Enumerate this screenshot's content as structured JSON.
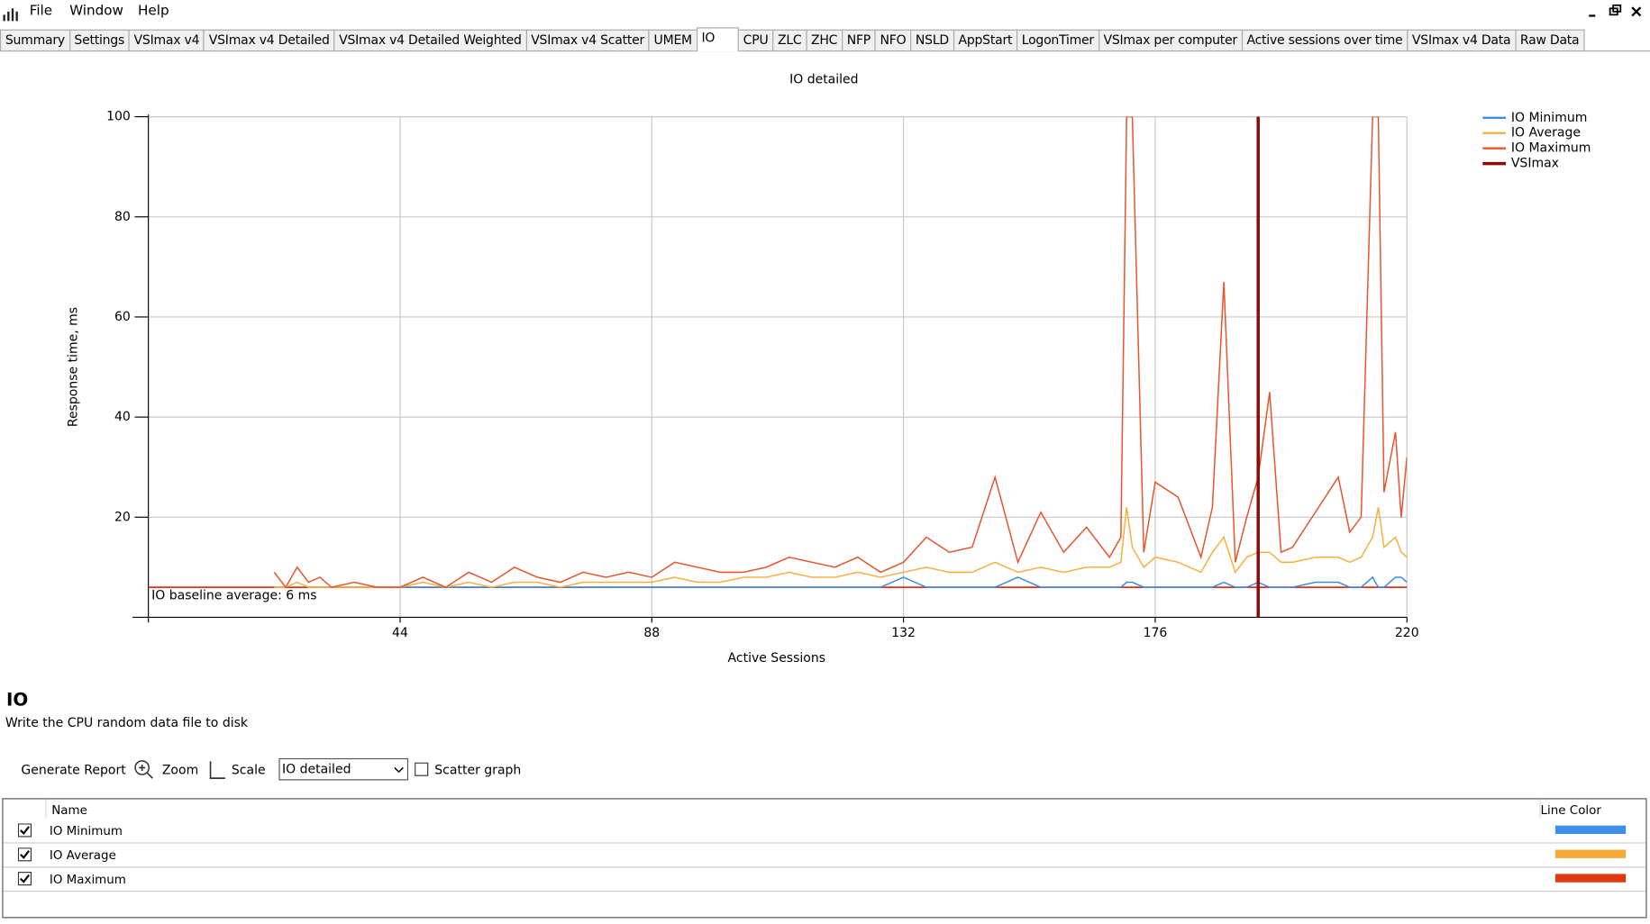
{
  "menu": [
    "File",
    "Window",
    "Help"
  ],
  "tabs": [
    "Summary",
    "Settings",
    "VSImax v4",
    "VSImax v4 Detailed",
    "VSImax v4 Detailed Weighted",
    "VSImax v4 Scatter",
    "UMEM",
    "IO",
    "CPU",
    "ZLC",
    "ZHC",
    "NFP",
    "NFO",
    "NSLD",
    "AppStart",
    "LogonTimer",
    "VSImax per computer",
    "Active sessions over time",
    "VSImax v4 Data",
    "Raw Data"
  ],
  "active_tab": 7,
  "chart_data": {
    "type": "line",
    "title": "IO detailed",
    "x_label": "Active Sessions",
    "y_label": "Response time, ms",
    "x": [
      22,
      24,
      26,
      28,
      30,
      32,
      36,
      40,
      44,
      48,
      52,
      56,
      60,
      64,
      68,
      72,
      76,
      80,
      84,
      88,
      92,
      96,
      100,
      104,
      108,
      112,
      116,
      120,
      124,
      128,
      132,
      136,
      140,
      144,
      148,
      152,
      156,
      160,
      164,
      168,
      170,
      171,
      172,
      174,
      176,
      180,
      184,
      186,
      188,
      190,
      192,
      194,
      196,
      198,
      200,
      204,
      208,
      210,
      212,
      214,
      215,
      216,
      218,
      219,
      220
    ],
    "series": [
      {
        "name": "IO Minimum",
        "color": "#3a8ee6",
        "values": [
          null,
          null,
          null,
          null,
          null,
          null,
          null,
          null,
          6,
          6,
          6,
          6,
          6,
          6,
          6,
          6,
          6,
          6,
          6,
          6,
          6,
          6,
          6,
          6,
          6,
          6,
          6,
          6,
          6,
          6,
          8,
          6,
          6,
          6,
          6,
          8,
          6,
          6,
          6,
          6,
          6,
          7,
          7,
          6,
          6,
          6,
          6,
          6,
          7,
          6,
          6,
          7,
          6,
          6,
          6,
          7,
          7,
          6,
          6,
          8,
          6,
          6,
          8,
          8,
          7
        ]
      },
      {
        "name": "IO Average",
        "color": "#f5b041",
        "values": [
          6,
          6,
          7,
          6,
          6,
          6,
          6,
          6,
          6,
          7,
          6,
          7,
          6,
          7,
          7,
          6,
          7,
          7,
          7,
          7,
          8,
          7,
          7,
          8,
          8,
          9,
          8,
          8,
          9,
          8,
          9,
          10,
          9,
          9,
          11,
          9,
          10,
          9,
          10,
          10,
          11,
          22,
          14,
          10,
          12,
          11,
          9,
          13,
          16,
          9,
          12,
          13,
          13,
          11,
          11,
          12,
          12,
          11,
          12,
          16,
          22,
          14,
          16,
          13,
          12
        ]
      },
      {
        "name": "IO Maximum",
        "color": "#e5572e",
        "values": [
          9,
          6,
          10,
          7,
          8,
          6,
          7,
          6,
          6,
          8,
          6,
          9,
          7,
          10,
          8,
          7,
          9,
          8,
          9,
          8,
          11,
          10,
          9,
          9,
          10,
          12,
          11,
          10,
          12,
          9,
          11,
          16,
          13,
          14,
          28,
          11,
          21,
          13,
          18,
          12,
          16,
          100,
          100,
          13,
          27,
          24,
          12,
          22,
          67,
          11,
          20,
          28,
          45,
          13,
          14,
          21,
          28,
          17,
          20,
          100,
          100,
          25,
          37,
          20,
          32
        ]
      }
    ],
    "vsimax": {
      "name": "VSImax",
      "color": "#8b0a0a",
      "x": 194
    },
    "baseline": {
      "label": "IO baseline average: 6 ms",
      "value": 6,
      "color": "#e0301e"
    },
    "xlim": [
      0,
      220
    ],
    "xticks": [
      44,
      88,
      132,
      176,
      220
    ],
    "ylim": [
      0,
      100
    ],
    "yticks": [
      20,
      40,
      60,
      80,
      100
    ],
    "grid": true,
    "legend": "top-right"
  },
  "info": {
    "title": "IO",
    "description": "Write the CPU random data file to disk"
  },
  "toolbar": {
    "generate_report": "Generate Report",
    "zoom": "Zoom",
    "scale": "Scale",
    "view_select": "IO detailed",
    "scatter_graph": "Scatter graph"
  },
  "series_table": {
    "columns": [
      "Name",
      "Line Color"
    ],
    "rows": [
      {
        "name": "IO Minimum",
        "checked": true,
        "color": "#3d8fe8"
      },
      {
        "name": "IO Average",
        "checked": true,
        "color": "#f4a93a"
      },
      {
        "name": "IO Maximum",
        "checked": true,
        "color": "#dd3a10"
      }
    ]
  }
}
